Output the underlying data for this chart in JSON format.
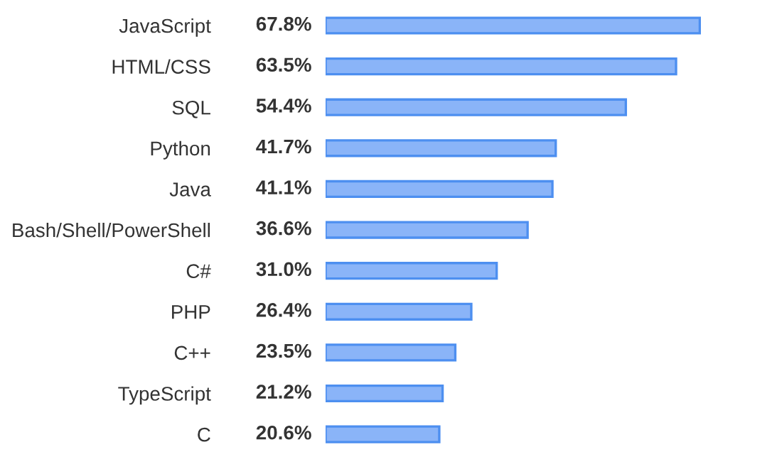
{
  "chart_data": {
    "type": "bar",
    "orientation": "horizontal",
    "categories": [
      "JavaScript",
      "HTML/CSS",
      "SQL",
      "Python",
      "Java",
      "Bash/Shell/PowerShell",
      "C#",
      "PHP",
      "C++",
      "TypeScript",
      "C"
    ],
    "values": [
      67.8,
      63.5,
      54.4,
      41.7,
      41.1,
      36.6,
      31.0,
      26.4,
      23.5,
      21.2,
      20.6
    ],
    "value_labels": [
      "67.8%",
      "63.5%",
      "54.4%",
      "41.7%",
      "41.1%",
      "36.6%",
      "31.0%",
      "26.4%",
      "23.5%",
      "21.2%",
      "20.6%"
    ],
    "color": "#8ab4f8",
    "grid": false,
    "legend": false
  }
}
